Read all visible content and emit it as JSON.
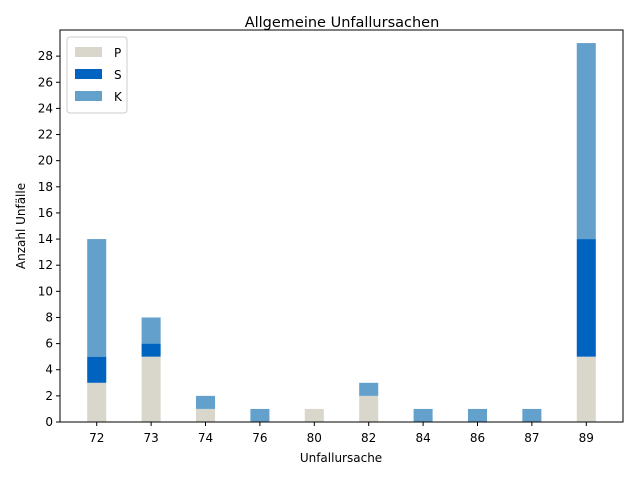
{
  "chart_data": {
    "type": "bar",
    "stacked": true,
    "title": "Allgemeine Unfallursachen",
    "xlabel": "Unfallursache",
    "ylabel": "Anzahl Unfälle",
    "categories": [
      "72",
      "73",
      "74",
      "76",
      "80",
      "82",
      "84",
      "86",
      "87",
      "89"
    ],
    "series": [
      {
        "name": "P",
        "color": "#d9d7cb",
        "values": [
          3,
          5,
          1,
          0,
          1,
          2,
          0,
          0,
          0,
          5
        ]
      },
      {
        "name": "S",
        "color": "#0063c0",
        "values": [
          2,
          1,
          0,
          0,
          0,
          0,
          0,
          0,
          0,
          9
        ]
      },
      {
        "name": "K",
        "color": "#63a1cc",
        "values": [
          9,
          2,
          1,
          1,
          0,
          1,
          1,
          1,
          1,
          15
        ]
      }
    ],
    "ylim": [
      0,
      30
    ],
    "yticks": [
      0,
      2,
      4,
      6,
      8,
      10,
      12,
      14,
      16,
      18,
      20,
      22,
      24,
      26,
      28
    ],
    "grid": false,
    "legend_position": "top-left"
  }
}
